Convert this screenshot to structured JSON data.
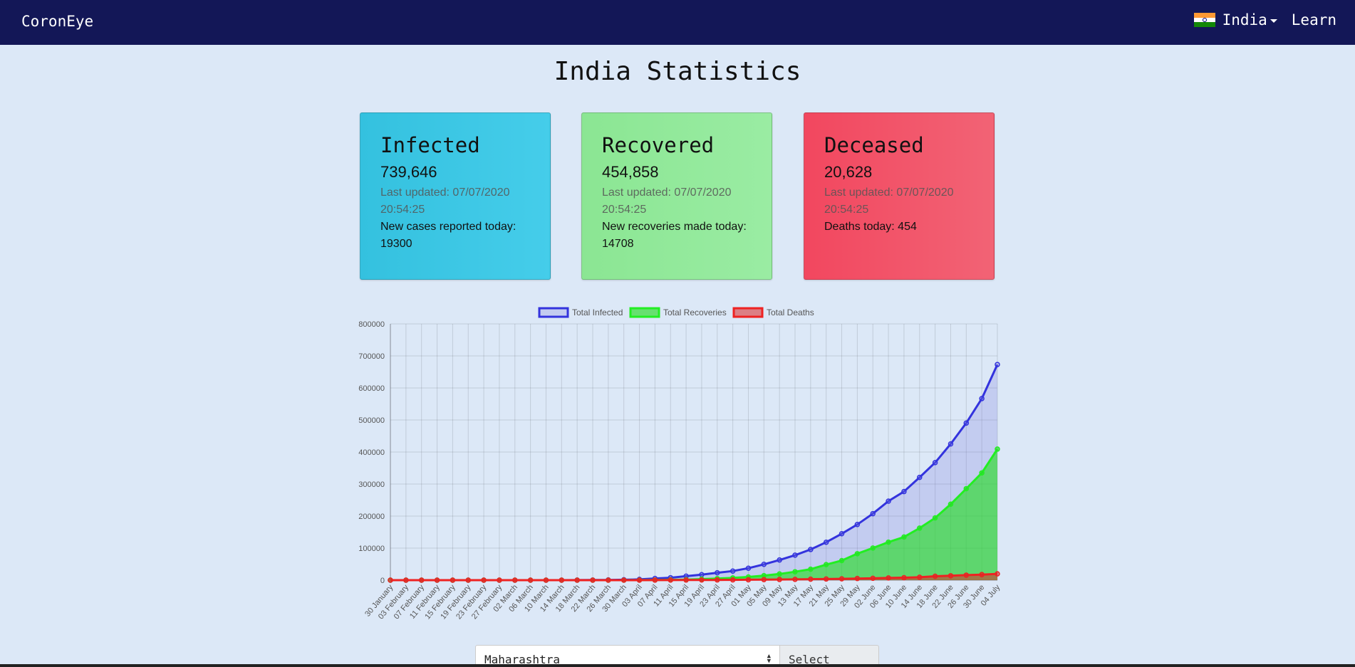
{
  "navbar": {
    "brand": "CoronEye",
    "country": "India",
    "learn": "Learn",
    "flag_icon": "india-flag-icon"
  },
  "page_title": "India Statistics",
  "cards": {
    "infected": {
      "title": "Infected",
      "count": "739,646",
      "updated": "Last updated: 07/07/2020 20:54:25",
      "today": "New cases reported today: 19300"
    },
    "recovered": {
      "title": "Recovered",
      "count": "454,858",
      "updated": "Last updated: 07/07/2020 20:54:25",
      "today": "New recoveries made today: 14708"
    },
    "deceased": {
      "title": "Deceased",
      "count": "20,628",
      "updated": "Last updated: 07/07/2020 20:54:25",
      "today": "Deaths today: 454"
    }
  },
  "chart_data": {
    "type": "line",
    "x": [
      "30 January",
      "03 February",
      "07 February",
      "11 February",
      "15 February",
      "19 February",
      "23 February",
      "27 February",
      "02 March",
      "06 March",
      "10 March",
      "14 March",
      "18 March",
      "22 March",
      "26 March",
      "30 March",
      "03 April",
      "07 April",
      "11 April",
      "15 April",
      "19 April",
      "23 April",
      "27 April",
      "01 May",
      "05 May",
      "09 May",
      "13 May",
      "17 May",
      "21 May",
      "25 May",
      "29 May",
      "02 June",
      "06 June",
      "10 June",
      "14 June",
      "18 June",
      "22 June",
      "26 June",
      "30 June",
      "04 July"
    ],
    "series": [
      {
        "name": "Total Infected",
        "color": "#3333dd",
        "fill": "rgba(120,120,220,0.25)",
        "values": [
          1,
          3,
          3,
          3,
          3,
          3,
          3,
          3,
          5,
          31,
          62,
          100,
          151,
          396,
          724,
          1251,
          2547,
          5351,
          7600,
          12380,
          17265,
          23077,
          28380,
          37257,
          49400,
          62939,
          78055,
          95698,
          118447,
          144941,
          173763,
          207615,
          246622,
          276583,
          320922,
          366946,
          425282,
          490401,
          566840,
          673165
        ]
      },
      {
        "name": "Total Recoveries",
        "color": "#22ee22",
        "fill": "rgba(40,220,40,0.65)",
        "values": [
          0,
          0,
          0,
          0,
          0,
          0,
          0,
          3,
          3,
          3,
          4,
          10,
          14,
          24,
          66,
          102,
          229,
          504,
          1190,
          1766,
          3263,
          5063,
          7027,
          10007,
          14142,
          19358,
          26235,
          34224,
          48534,
          61149,
          82627,
          100285,
          118695,
          134670,
          162379,
          194325,
          237196,
          285637,
          334822,
          409083
        ]
      },
      {
        "name": "Total Deaths",
        "color": "#ee2222",
        "fill": "rgba(220,40,40,0.55)",
        "values": [
          0,
          0,
          0,
          0,
          0,
          0,
          0,
          0,
          0,
          0,
          2,
          2,
          3,
          7,
          17,
          32,
          72,
          160,
          242,
          420,
          559,
          724,
          886,
          1223,
          1694,
          2109,
          2551,
          3029,
          3584,
          4167,
          5164,
          5829,
          6929,
          7745,
          9195,
          12237,
          13699,
          15685,
          17400,
          19693
        ]
      }
    ],
    "ylim": [
      0,
      800000
    ],
    "yticks": [
      "800000",
      "700000",
      "600000",
      "500000",
      "400000",
      "300000",
      "200000",
      "100000",
      "0"
    ],
    "grid": true,
    "legend": "top"
  },
  "state_select": {
    "value": "Maharashtra",
    "button": "Select State"
  }
}
